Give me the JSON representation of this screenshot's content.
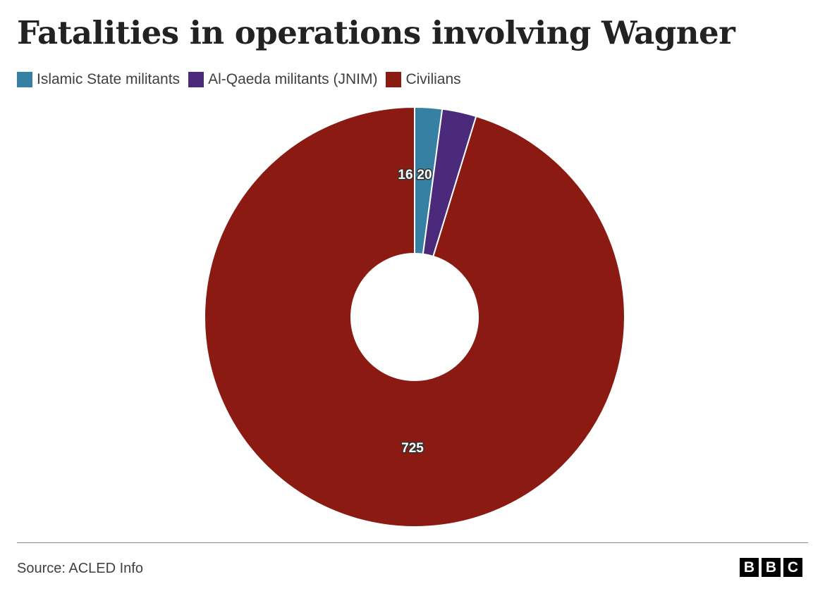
{
  "chart_data": {
    "type": "pie",
    "style": "donut",
    "title": "Fatalities in operations involving Wagner",
    "categories": [
      "Islamic State militants",
      "Al-Qaeda militants (JNIM)",
      "Civilians"
    ],
    "values": [
      16,
      20,
      725
    ],
    "colors": [
      "#3580a3",
      "#4b2a7b",
      "#8b1a12"
    ],
    "data_labels": [
      "16",
      "20",
      "725"
    ],
    "legend_position": "top-left",
    "source": "Source: ACLED Info"
  },
  "legend": [
    {
      "label": "Islamic State militants",
      "color": "#3580a3"
    },
    {
      "label": "Al-Qaeda militants (JNIM)",
      "color": "#4b2a7b"
    },
    {
      "label": "Civilians",
      "color": "#8b1a12"
    }
  ],
  "footer": {
    "source": "Source: ACLED Info",
    "logo_letters": [
      "B",
      "B",
      "C"
    ]
  }
}
